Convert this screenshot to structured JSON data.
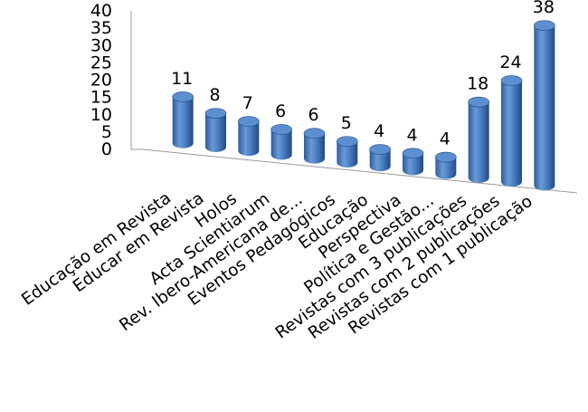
{
  "chart_data": {
    "type": "bar",
    "style": "3d-cylinder",
    "categories": [
      "Educação em Revista",
      "Educar em Revista",
      "Holos",
      "Acta Scientiarum",
      "Rev. Ibero-Americana de...",
      "Eventos Pedagógicos",
      "Educação",
      "Perspectiva",
      "Política e Gestão...",
      "Revistas com 3 publicações",
      "Revistas com 2 publicações",
      "Revistas com 1 publicação"
    ],
    "values": [
      11,
      8,
      7,
      6,
      6,
      5,
      4,
      4,
      4,
      18,
      24,
      38
    ],
    "data_labels": [
      "11",
      "8",
      "7",
      "6",
      "6",
      "5",
      "4",
      "4",
      "4",
      "18",
      "24",
      "38"
    ],
    "title": "",
    "xlabel": "",
    "ylabel": "",
    "ylim": [
      0,
      40
    ],
    "yticks": [
      "0",
      "5",
      "10",
      "15",
      "20",
      "25",
      "30",
      "35",
      "40"
    ],
    "grid": false,
    "legend": "none",
    "colors": {
      "bar_light": "#7da8dc",
      "bar_main": "#3f72b8",
      "bar_dark": "#244b82",
      "bar_top": "#5c8fd0",
      "axis": "#9a9a9a"
    }
  }
}
